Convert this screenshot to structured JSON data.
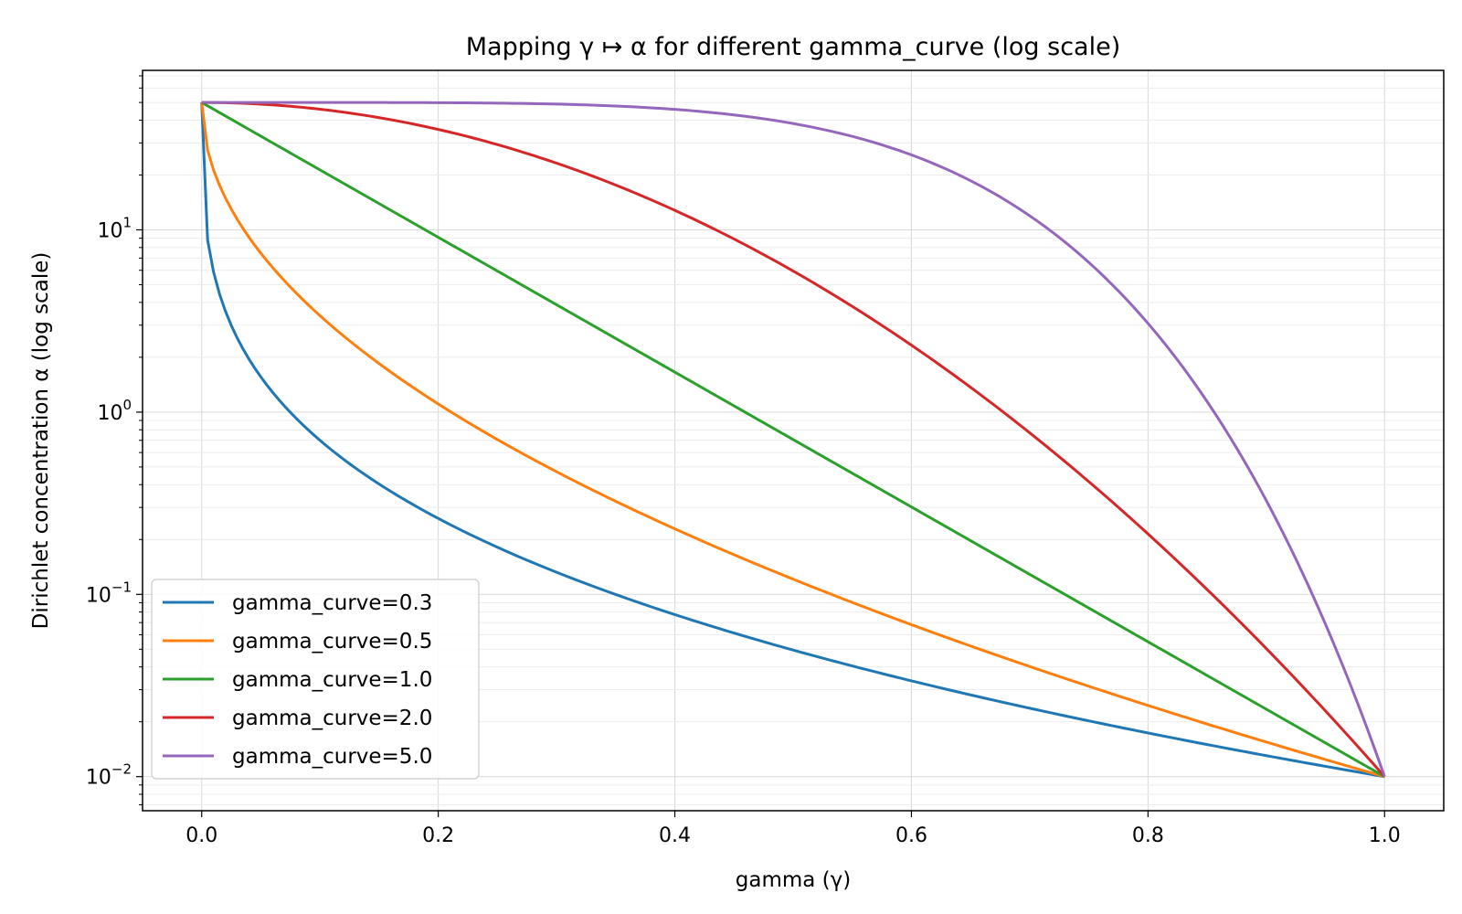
{
  "chart_data": {
    "type": "line",
    "title": "Mapping γ ↦ α for different gamma_curve (log scale)",
    "xlabel": "gamma (γ)",
    "ylabel": "Dirichlet concentration α (log scale)",
    "x_scale": "linear",
    "y_scale": "log",
    "xlim": [
      -0.05,
      1.05
    ],
    "ylim": [
      0.0065,
      75
    ],
    "x_ticks": [
      0.0,
      0.2,
      0.4,
      0.6,
      0.8,
      1.0
    ],
    "x_tick_labels": [
      "0.0",
      "0.2",
      "0.4",
      "0.6",
      "0.8",
      "1.0"
    ],
    "y_ticks": [
      0.01,
      0.1,
      1,
      10
    ],
    "y_tick_labels": [
      {
        "base": "10",
        "exp": "−2"
      },
      {
        "base": "10",
        "exp": "−1"
      },
      {
        "base": "10",
        "exp": "0"
      },
      {
        "base": "10",
        "exp": "1"
      }
    ],
    "grid": true,
    "legend_position": "lower-left",
    "alpha_max": 50,
    "alpha_min": 0.01,
    "series": [
      {
        "name": "gamma_curve=0.3",
        "gamma_curve": 0.3,
        "color": "#1f77b4"
      },
      {
        "name": "gamma_curve=0.5",
        "gamma_curve": 0.5,
        "color": "#ff7f0e"
      },
      {
        "name": "gamma_curve=1.0",
        "gamma_curve": 1.0,
        "color": "#2ca02c"
      },
      {
        "name": "gamma_curve=2.0",
        "gamma_curve": 2.0,
        "color": "#d62728"
      },
      {
        "name": "gamma_curve=5.0",
        "gamma_curve": 5.0,
        "color": "#9467bd"
      }
    ]
  }
}
